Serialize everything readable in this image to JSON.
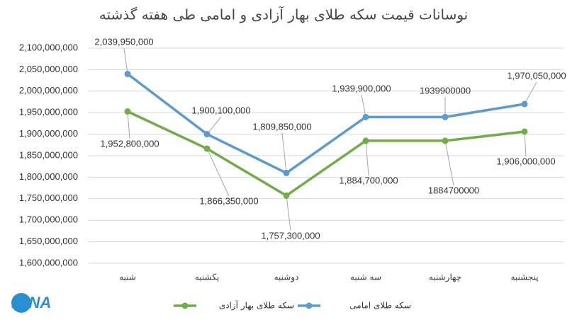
{
  "chart_data": {
    "type": "line",
    "title": "نوسانات قیمت سکه طلای بهار آزادی و امامی طی هفته گذشته",
    "categories": [
      "شنبه",
      "یکشنبه",
      "دوشنبه",
      "سه شنبه",
      "چهارشنبه",
      "پنجشنبه"
    ],
    "series": [
      {
        "name": "سکه طلای بهار آزادی",
        "color": "#70ad47",
        "values": [
          1952800000,
          1866350000,
          1757300000,
          1884700000,
          1884700000,
          1906000000
        ],
        "value_labels": [
          "1,952,800,000",
          "1,866,350,000",
          "1,757,300,000",
          "1,884,700,000",
          "1884700000",
          "1,906,000,000"
        ]
      },
      {
        "name": "سکه طلای امامی",
        "color": "#5b9bd5",
        "values": [
          2039950000,
          1900100000,
          1809850000,
          1939900000,
          1939900000,
          1970050000
        ],
        "value_labels": [
          "2,039,950,000",
          "1,900,100,000",
          "1,809,850,000",
          "1,939,900,000",
          "1939900000",
          "1,970,050,000"
        ]
      }
    ],
    "ylim": [
      1600000000,
      2100000000
    ],
    "yticks": [
      {
        "value": 1600000000,
        "label": "1,600,000,000"
      },
      {
        "value": 1650000000,
        "label": "1,650,000,000"
      },
      {
        "value": 1700000000,
        "label": "1,700,000,000"
      },
      {
        "value": 1750000000,
        "label": "1,750,000,000"
      },
      {
        "value": 1800000000,
        "label": "1,800,000,000"
      },
      {
        "value": 1850000000,
        "label": "1,850,000,000"
      },
      {
        "value": 1900000000,
        "label": "1,900,000,000"
      },
      {
        "value": 1950000000,
        "label": "1,950,000,000"
      },
      {
        "value": 2000000000,
        "label": "2,000,000,000"
      },
      {
        "value": 2050000000,
        "label": "2,050,000,000"
      },
      {
        "value": 2100000000,
        "label": "2,100,000,000"
      }
    ],
    "grid": true,
    "legend": "bottom",
    "logo": "IMNA"
  }
}
